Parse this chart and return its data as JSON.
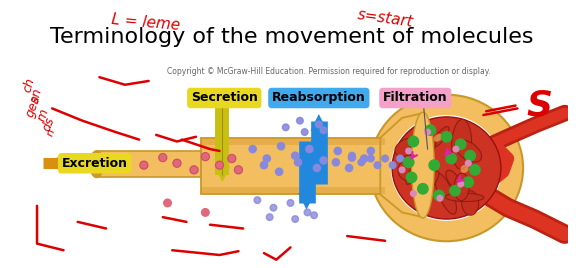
{
  "title": "Terminology of the movement of molecules",
  "copyright": "Copyright © McGraw-Hill Education. Permission required for reproduction or display.",
  "labels": {
    "secretion": "Secretion",
    "reabsorption": "Reabsorption",
    "filtration": "Filtration",
    "excretion": "Excretion"
  },
  "label_bg_colors": {
    "secretion": "#e8d820",
    "reabsorption": "#40aaee",
    "filtration": "#f5a0c8",
    "excretion": "#e8d820"
  },
  "handwriting_color": "#dd0000",
  "bg_color": "#ffffff",
  "tubule_fill": "#f2be60",
  "tubule_edge": "#c89828",
  "tubule_shadow": "#d4982a",
  "glom_outer_fill": "#f2be60",
  "glom_red": "#cc3322",
  "artery_red": "#bb2211",
  "arrow_blue": "#2288dd",
  "arrow_yellow": "#c8c010",
  "title_fontsize": 16,
  "label_fontsize": 9,
  "copy_fontsize": 5.5
}
